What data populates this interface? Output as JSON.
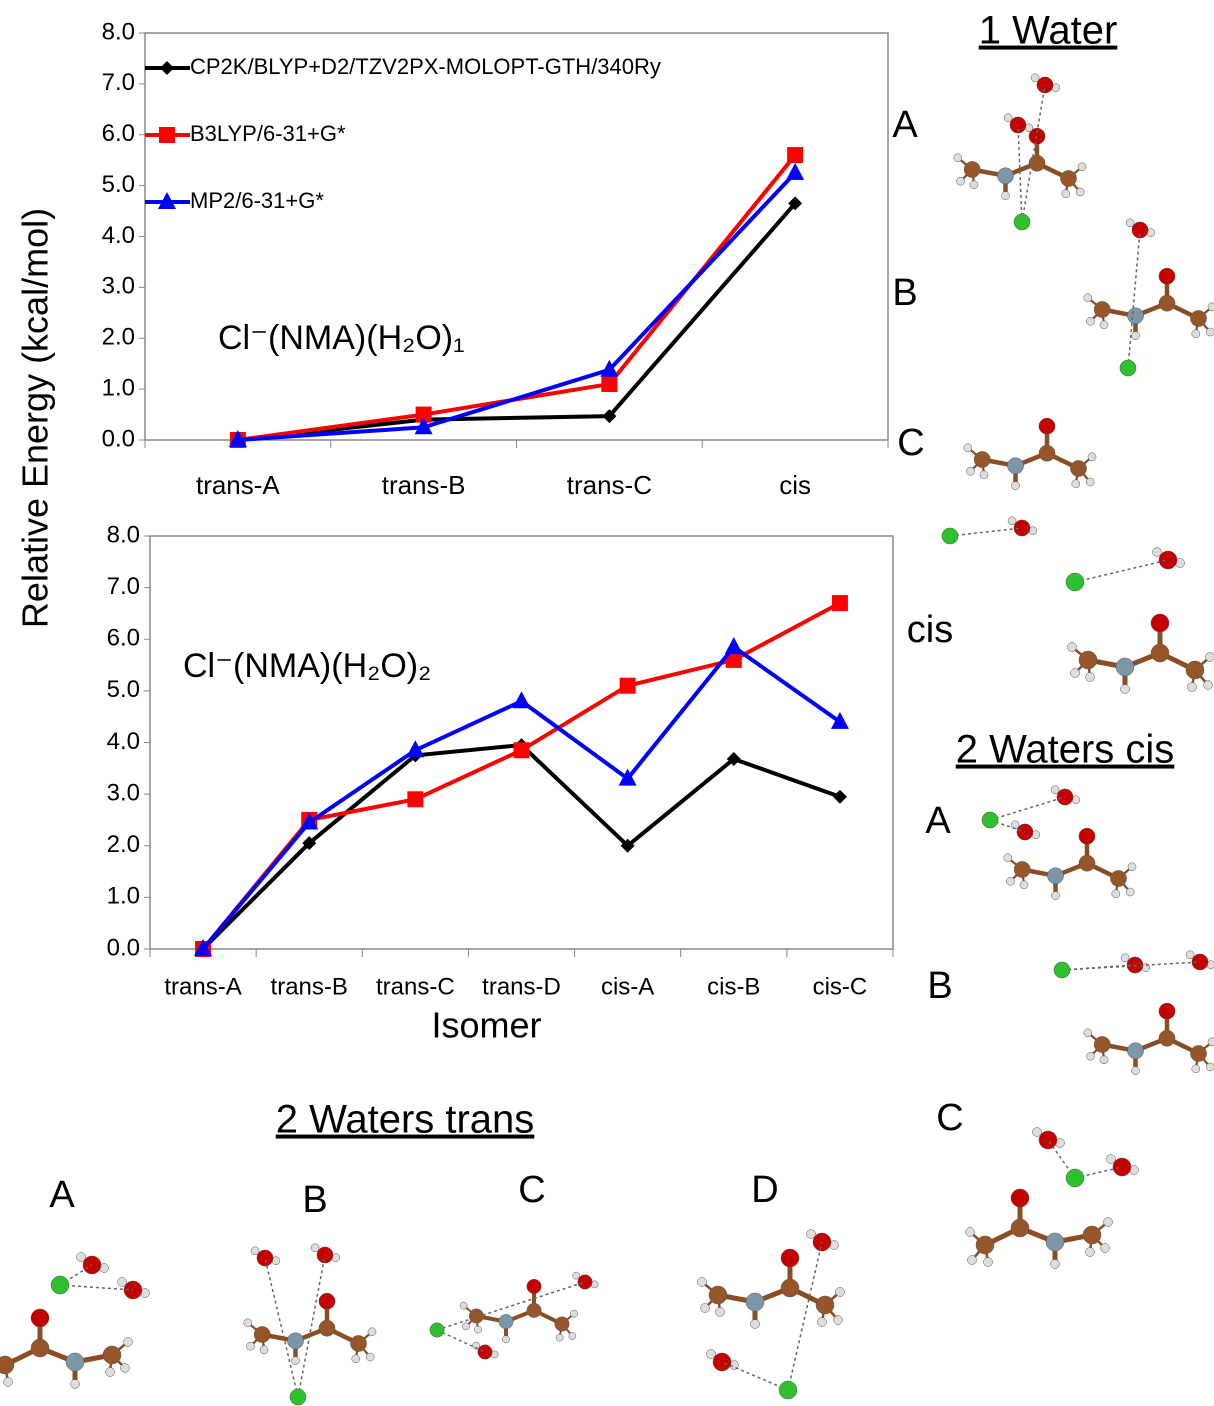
{
  "chart_data": [
    {
      "type": "line",
      "ylabel": "Relative Energy (kcal/mol)",
      "annotation": "Cl⁻(NMA)(H₂O)₁",
      "categories": [
        "trans-A",
        "trans-B",
        "trans-C",
        "cis"
      ],
      "series": [
        {
          "name": "CP2K/BLYP+D2/TZV2PX-MOLOPT-GTH/340Ry",
          "color": "#000000",
          "marker": "diamond",
          "values": [
            0,
            0.4,
            0.47,
            4.65
          ]
        },
        {
          "name": "B3LYP/6-31+G*",
          "color": "#ff0000",
          "marker": "square",
          "values": [
            0,
            0.5,
            1.1,
            5.6
          ]
        },
        {
          "name": "MP2/6-31+G*",
          "color": "#0000ff",
          "marker": "triangle",
          "values": [
            0,
            0.25,
            1.38,
            5.25
          ]
        }
      ],
      "ylim": [
        0,
        8
      ],
      "yticks": [
        {
          "value": 0,
          "label": "0.0"
        },
        {
          "value": 1,
          "label": "1.0"
        },
        {
          "value": 2,
          "label": "2.0"
        },
        {
          "value": 3,
          "label": "3.0"
        },
        {
          "value": 4,
          "label": "4.0"
        },
        {
          "value": 5,
          "label": "5.0"
        },
        {
          "value": 6,
          "label": "6.0"
        },
        {
          "value": 7,
          "label": "7.0"
        },
        {
          "value": 8,
          "label": "8.0"
        }
      ],
      "grid": false,
      "legend": "upper left"
    },
    {
      "type": "line",
      "xlabel": "Isomer",
      "annotation": "Cl⁻(NMA)(H₂O)₂",
      "categories": [
        "trans-A",
        "trans-B",
        "trans-C",
        "trans-D",
        "cis-A",
        "cis-B",
        "cis-C"
      ],
      "series": [
        {
          "color": "#000000",
          "marker": "diamond",
          "values": [
            0,
            2.05,
            3.75,
            3.95,
            2.0,
            3.68,
            2.95
          ]
        },
        {
          "color": "#ff0000",
          "marker": "square",
          "values": [
            0,
            2.5,
            2.9,
            3.85,
            5.1,
            5.6,
            6.7
          ]
        },
        {
          "color": "#0000ff",
          "marker": "triangle",
          "values": [
            0,
            2.45,
            3.85,
            4.8,
            3.3,
            5.85,
            4.4
          ]
        }
      ],
      "ylim": [
        0,
        8
      ],
      "yticks": [
        {
          "value": 0,
          "label": "0.0"
        },
        {
          "value": 1,
          "label": "1.0"
        },
        {
          "value": 2,
          "label": "2.0"
        },
        {
          "value": 3,
          "label": "3.0"
        },
        {
          "value": 4,
          "label": "4.0"
        },
        {
          "value": 5,
          "label": "5.0"
        },
        {
          "value": 6,
          "label": "6.0"
        },
        {
          "value": 7,
          "label": "7.0"
        },
        {
          "value": 8,
          "label": "8.0"
        }
      ],
      "grid": false
    }
  ],
  "panels": [
    {
      "title": "1 Water",
      "labels": [
        "A",
        "B",
        "C",
        "cis"
      ]
    },
    {
      "title": "2 Waters cis",
      "labels": [
        "A",
        "B",
        "C"
      ]
    },
    {
      "title": "2 Waters trans",
      "labels": [
        "A",
        "B",
        "C",
        "D"
      ]
    }
  ]
}
